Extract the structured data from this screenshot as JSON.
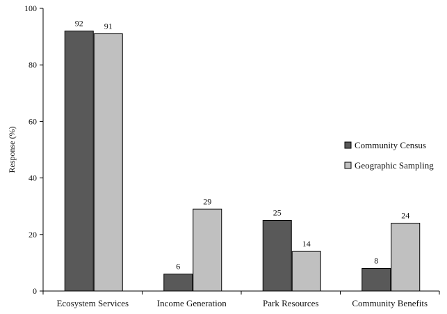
{
  "chart_data": {
    "type": "bar",
    "title": "",
    "xlabel": "",
    "ylabel": "Response (%)",
    "ylim": [
      0,
      100
    ],
    "yticks": [
      0,
      20,
      40,
      60,
      80,
      100
    ],
    "grid": false,
    "legend_position": "right",
    "categories": [
      "Ecosystem Services",
      "Income Generation",
      "Park Resources",
      "Community Benefits"
    ],
    "series": [
      {
        "name": "Community Census",
        "color": "#595959",
        "values": [
          92,
          6,
          25,
          8
        ]
      },
      {
        "name": "Geographic Sampling",
        "color": "#c0c0c0",
        "values": [
          91,
          29,
          14,
          24
        ]
      }
    ]
  }
}
